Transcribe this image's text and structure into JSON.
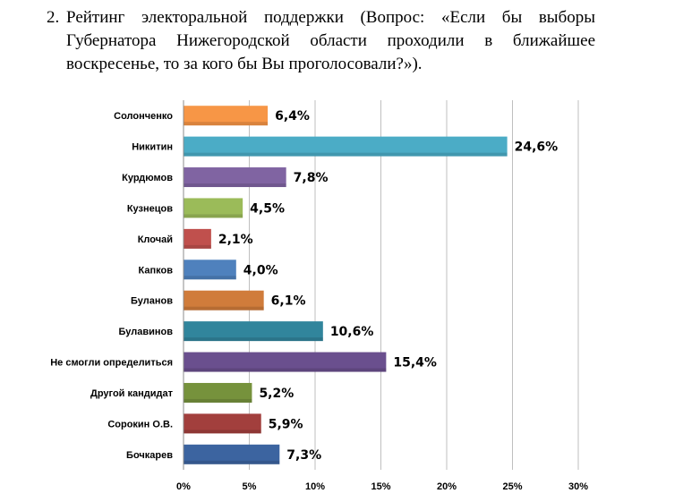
{
  "heading": {
    "number": "2.",
    "text": "Рейтинг электоральной поддержки (Вопрос: «Если бы выборы Губернатора Нижегородской области проходили в ближайшее воскресенье, то за кого бы Вы проголосовали?»)."
  },
  "chart_data": {
    "type": "bar",
    "orientation": "horizontal",
    "categories": [
      "Солонченко",
      "Никитин",
      "Курдюмов",
      "Кузнецов",
      "Клочай",
      "Капков",
      "Буланов",
      "Булавинов",
      "Не смогли определиться",
      "Другой кандидат",
      "Сорокин О.В.",
      "Бочкарев"
    ],
    "values": [
      6.4,
      24.6,
      7.8,
      4.5,
      2.1,
      4.0,
      6.1,
      10.6,
      15.4,
      5.2,
      5.9,
      7.3
    ],
    "value_labels": [
      "6,4%",
      "24,6%",
      "7,8%",
      "4,5%",
      "2,1%",
      "4,0%",
      "6,1%",
      "10,6%",
      "15,4%",
      "5,2%",
      "5,9%",
      "7,3%"
    ],
    "colors": [
      "#F79646",
      "#4BACC6",
      "#8064A2",
      "#9BBB59",
      "#C0504D",
      "#4F81BD",
      "#D07C3B",
      "#31859C",
      "#6A4F8E",
      "#76923C",
      "#A23F3D",
      "#3C64A0"
    ],
    "xlim": [
      0,
      30
    ],
    "x_ticks": [
      0,
      5,
      10,
      15,
      20,
      25,
      30
    ],
    "x_tick_labels": [
      "0%",
      "5%",
      "10%",
      "15%",
      "20%",
      "25%",
      "30%"
    ],
    "grid": true
  }
}
